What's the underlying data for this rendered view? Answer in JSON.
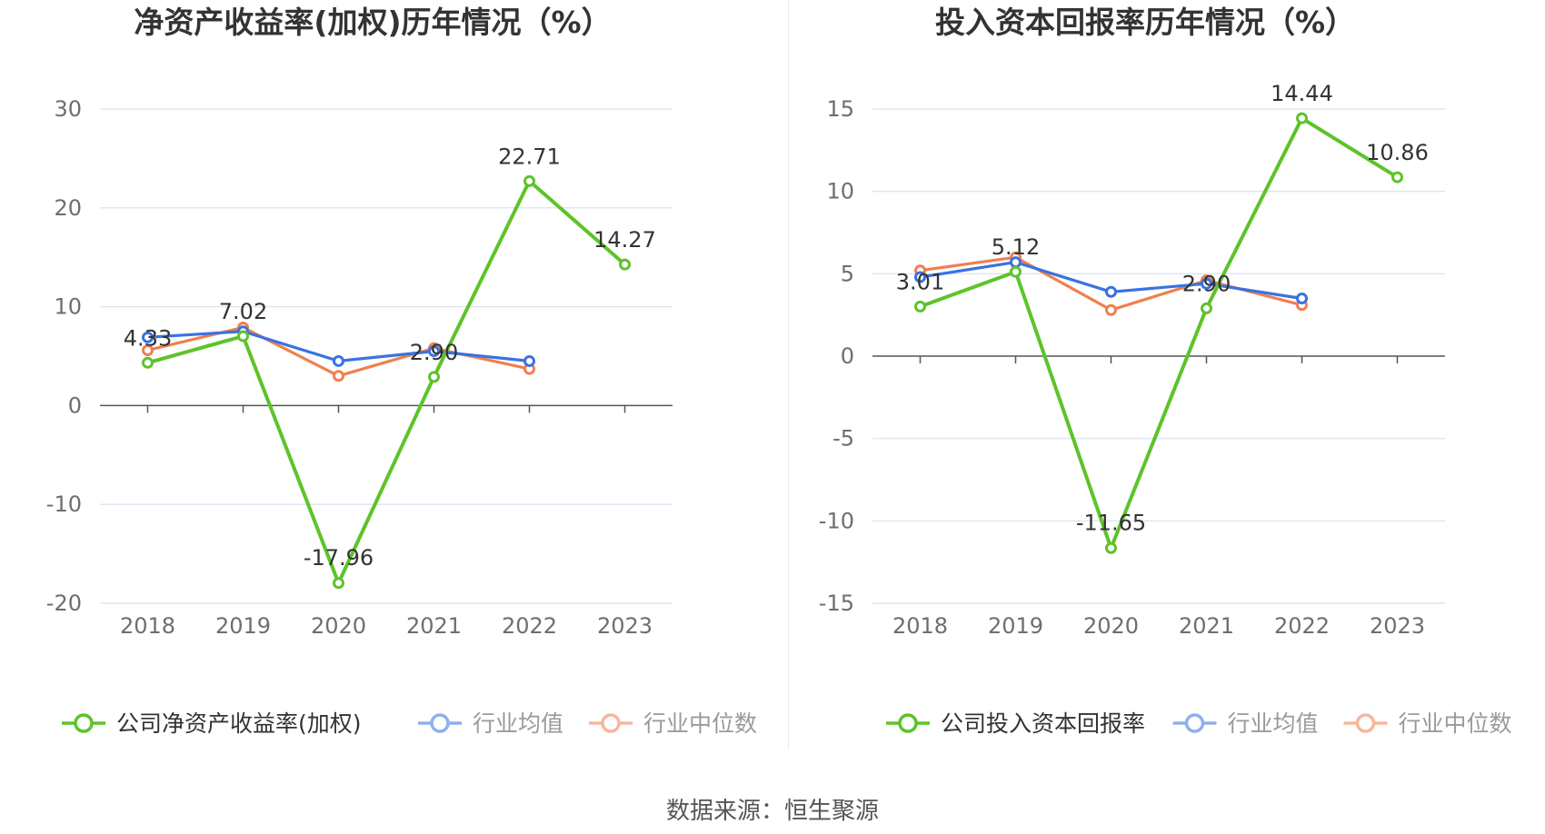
{
  "chart_data": [
    {
      "type": "line",
      "title": "净资产收益率(加权)历年情况（%）",
      "categories": [
        "2018",
        "2019",
        "2020",
        "2021",
        "2022",
        "2023"
      ],
      "ylim": [
        -20,
        30
      ],
      "yticks": [
        30,
        20,
        10,
        0,
        -10,
        -20
      ],
      "grid": true,
      "legend_position": "bottom",
      "series": [
        {
          "name": "公司净资产收益率(加权)",
          "color": "#5ec32a",
          "values": [
            4.33,
            7.02,
            -17.96,
            2.9,
            22.71,
            14.27
          ],
          "labels": [
            "4.33",
            "7.02",
            "-17.96",
            "2.90",
            "22.71",
            "14.27"
          ]
        },
        {
          "name": "行业均值",
          "color": "#3a72e0",
          "values": [
            6.9,
            7.5,
            4.5,
            5.5,
            4.5,
            null
          ]
        },
        {
          "name": "行业中位数",
          "color": "#f07f50",
          "values": [
            5.6,
            7.9,
            3.0,
            5.8,
            3.7,
            null
          ]
        }
      ]
    },
    {
      "type": "line",
      "title": "投入资本回报率历年情况（%）",
      "categories": [
        "2018",
        "2019",
        "2020",
        "2021",
        "2022",
        "2023"
      ],
      "ylim": [
        -15,
        15
      ],
      "yticks": [
        15,
        10,
        5,
        0,
        -5,
        -10,
        -15
      ],
      "grid": true,
      "legend_position": "bottom",
      "series": [
        {
          "name": "公司投入资本回报率",
          "color": "#5ec32a",
          "values": [
            3.01,
            5.12,
            -11.65,
            2.9,
            14.44,
            10.86
          ],
          "labels": [
            "3.01",
            "5.12",
            "-11.65",
            "2.90",
            "14.44",
            "10.86"
          ]
        },
        {
          "name": "行业均值",
          "color": "#3a72e0",
          "values": [
            4.8,
            5.7,
            3.9,
            4.4,
            3.5,
            null
          ]
        },
        {
          "name": "行业中位数",
          "color": "#f07f50",
          "values": [
            5.2,
            6.0,
            2.8,
            4.6,
            3.1,
            null
          ]
        }
      ]
    }
  ],
  "footer": {
    "source": "数据来源：恒生聚源"
  }
}
